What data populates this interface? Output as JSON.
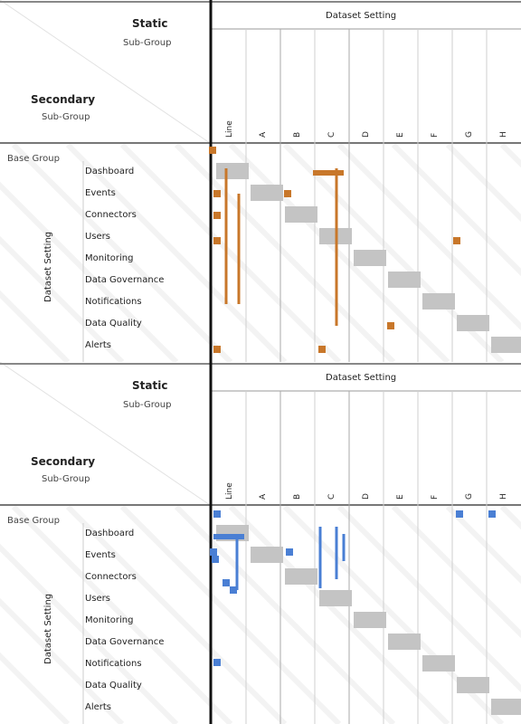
{
  "panels": [
    {
      "corner_top_title": "Static",
      "corner_top_sub": "Sub-Group",
      "corner_left_title": "Secondary",
      "corner_left_sub": "Sub-Group",
      "top_header": "Dataset Setting",
      "left_header": "Dataset Setting",
      "group_label": "Base Group",
      "accent": "#c8772a",
      "columns": [
        "Line",
        "A",
        "B",
        "C",
        "D",
        "E",
        "F",
        "G",
        "H"
      ],
      "rows": [
        "Dashboard",
        "Events",
        "Connectors",
        "Users",
        "Monitoring",
        "Data Governance",
        "Notifications",
        "Data Quality",
        "Alerts"
      ]
    },
    {
      "corner_top_title": "Static",
      "corner_top_sub": "Sub-Group",
      "corner_left_title": "Secondary",
      "corner_left_sub": "Sub-Group",
      "top_header": "Dataset Setting",
      "left_header": "Dataset Setting",
      "group_label": "Base Group",
      "accent": "#4a7fd4",
      "columns": [
        "Line",
        "A",
        "B",
        "C",
        "D",
        "E",
        "F",
        "G",
        "H"
      ],
      "rows": [
        "Dashboard",
        "Events",
        "Connectors",
        "Users",
        "Monitoring",
        "Data Governance",
        "Notifications",
        "Data Quality",
        "Alerts"
      ]
    }
  ]
}
